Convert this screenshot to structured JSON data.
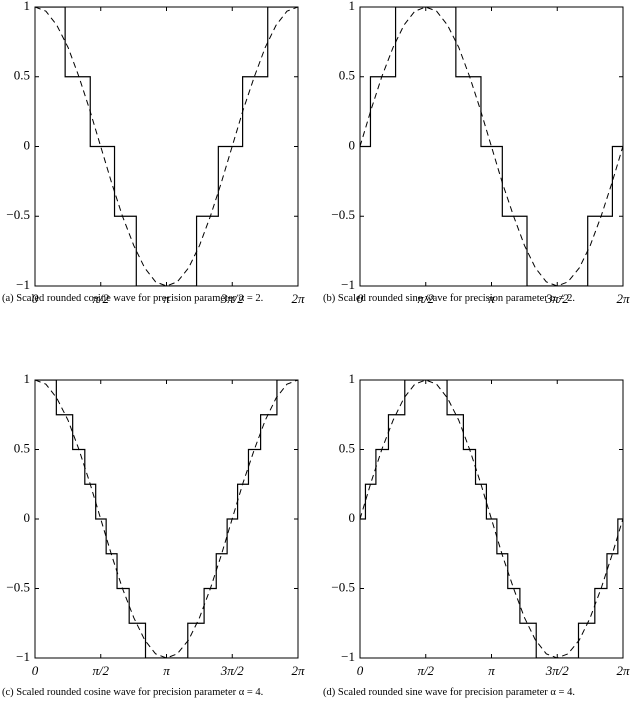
{
  "chart_data": [
    {
      "type": "line",
      "caption": "(a) Scaled rounded cosine wave for precision parameter α = 2.",
      "xlim": [
        0,
        6.2832
      ],
      "ylim": [
        -1,
        1
      ],
      "xticks": [
        0,
        {
          "value": 1.5708,
          "label": "π/2"
        },
        {
          "value": 3.1416,
          "label": "π"
        },
        {
          "value": 4.7124,
          "label": "3π/2"
        },
        {
          "value": 6.2832,
          "label": "2π"
        }
      ],
      "yticks": [
        {
          "value": -1,
          "label": "−1"
        },
        {
          "value": -0.5,
          "label": "−0.5"
        },
        0,
        0.5,
        1
      ],
      "series": [
        {
          "dash": true,
          "color": "#000000",
          "x": [
            0,
            0.26,
            0.52,
            0.79,
            1.05,
            1.31,
            1.57,
            1.83,
            2.09,
            2.36,
            2.62,
            2.88,
            3.14,
            3.4,
            3.67,
            3.93,
            4.19,
            4.45,
            4.71,
            4.97,
            5.24,
            5.5,
            5.76,
            6.02,
            6.28
          ],
          "values": [
            1,
            0.97,
            0.87,
            0.71,
            0.5,
            0.26,
            0,
            -0.26,
            -0.5,
            -0.71,
            -0.87,
            -0.97,
            -1,
            -0.97,
            -0.87,
            -0.71,
            -0.5,
            -0.26,
            0,
            0.26,
            0.5,
            0.71,
            0.87,
            0.97,
            1
          ]
        },
        {
          "dash": false,
          "color": "#000000",
          "x": [
            0,
            0.72,
            0.72,
            1.32,
            1.32,
            1.9,
            1.9,
            2.42,
            2.42,
            3.86,
            3.86,
            4.38,
            4.38,
            4.96,
            4.96,
            5.56,
            5.56,
            6.28
          ],
          "values": [
            1,
            1,
            0.5,
            0.5,
            0,
            0,
            -0.5,
            -0.5,
            -1,
            -1,
            -0.5,
            -0.5,
            0,
            0,
            0.5,
            0.5,
            1,
            1
          ]
        }
      ]
    },
    {
      "type": "line",
      "caption": "(b) Scaled rounded sine wave for precision parameter α = 2.",
      "xlim": [
        0,
        6.2832
      ],
      "ylim": [
        -1,
        1
      ],
      "xticks": [
        0,
        {
          "value": 1.5708,
          "label": "π/2"
        },
        {
          "value": 3.1416,
          "label": "π"
        },
        {
          "value": 4.7124,
          "label": "3π/2"
        },
        {
          "value": 6.2832,
          "label": "2π"
        }
      ],
      "yticks": [
        {
          "value": -1,
          "label": "−1"
        },
        {
          "value": -0.5,
          "label": "−0.5"
        },
        0,
        0.5,
        1
      ],
      "series": [
        {
          "dash": true,
          "color": "#000000",
          "x": [
            0,
            0.26,
            0.52,
            0.79,
            1.05,
            1.31,
            1.57,
            1.83,
            2.09,
            2.36,
            2.62,
            2.88,
            3.14,
            3.4,
            3.67,
            3.93,
            4.19,
            4.45,
            4.71,
            4.97,
            5.24,
            5.5,
            5.76,
            6.02,
            6.28
          ],
          "values": [
            0,
            0.26,
            0.5,
            0.71,
            0.87,
            0.97,
            1,
            0.97,
            0.87,
            0.71,
            0.5,
            0.26,
            0,
            -0.26,
            -0.5,
            -0.71,
            -0.87,
            -0.97,
            -1,
            -0.97,
            -0.87,
            -0.71,
            -0.5,
            -0.26,
            0
          ]
        },
        {
          "dash": false,
          "color": "#000000",
          "x": [
            0,
            0.25,
            0.25,
            0.85,
            0.85,
            2.29,
            2.29,
            2.89,
            2.89,
            3.4,
            3.4,
            3.99,
            3.99,
            5.44,
            5.44,
            6.03,
            6.03,
            6.28
          ],
          "values": [
            0,
            0,
            0.5,
            0.5,
            1,
            1,
            0.5,
            0.5,
            0,
            0,
            -0.5,
            -0.5,
            -1,
            -1,
            -0.5,
            -0.5,
            0,
            0
          ]
        }
      ]
    },
    {
      "type": "line",
      "caption": "(c) Scaled rounded cosine wave for precision parameter α = 4.",
      "xlim": [
        0,
        6.2832
      ],
      "ylim": [
        -1,
        1
      ],
      "xticks": [
        0,
        {
          "value": 1.5708,
          "label": "π/2"
        },
        {
          "value": 3.1416,
          "label": "π"
        },
        {
          "value": 4.7124,
          "label": "3π/2"
        },
        {
          "value": 6.2832,
          "label": "2π"
        }
      ],
      "yticks": [
        {
          "value": -1,
          "label": "−1"
        },
        {
          "value": -0.5,
          "label": "−0.5"
        },
        0,
        0.5,
        1
      ],
      "series": [
        {
          "dash": true,
          "color": "#000000",
          "x": [
            0,
            0.26,
            0.52,
            0.79,
            1.05,
            1.31,
            1.57,
            1.83,
            2.09,
            2.36,
            2.62,
            2.88,
            3.14,
            3.4,
            3.67,
            3.93,
            4.19,
            4.45,
            4.71,
            4.97,
            5.24,
            5.5,
            5.76,
            6.02,
            6.28
          ],
          "values": [
            1,
            0.97,
            0.87,
            0.71,
            0.5,
            0.26,
            0,
            -0.26,
            -0.5,
            -0.71,
            -0.87,
            -0.97,
            -1,
            -0.97,
            -0.87,
            -0.71,
            -0.5,
            -0.26,
            0,
            0.26,
            0.5,
            0.71,
            0.87,
            0.97,
            1
          ]
        },
        {
          "dash": false,
          "color": "#000000",
          "x": [
            0,
            0.51,
            0.51,
            0.9,
            0.9,
            1.19,
            1.19,
            1.45,
            1.45,
            1.7,
            1.7,
            1.96,
            1.96,
            2.25,
            2.25,
            2.64,
            2.64,
            3.65,
            3.65,
            4.04,
            4.04,
            4.33,
            4.33,
            4.59,
            4.59,
            4.84,
            4.84,
            5.1,
            5.1,
            5.39,
            5.39,
            5.78,
            5.78,
            6.28
          ],
          "values": [
            1,
            1,
            0.75,
            0.75,
            0.5,
            0.5,
            0.25,
            0.25,
            0,
            0,
            -0.25,
            -0.25,
            -0.5,
            -0.5,
            -0.75,
            -0.75,
            -1,
            -1,
            -0.75,
            -0.75,
            -0.5,
            -0.5,
            -0.25,
            -0.25,
            0,
            0,
            0.25,
            0.25,
            0.5,
            0.5,
            0.75,
            0.75,
            1,
            1
          ]
        }
      ]
    },
    {
      "type": "line",
      "caption": "(d) Scaled rounded sine wave for precision parameter α = 4.",
      "xlim": [
        0,
        6.2832
      ],
      "ylim": [
        -1,
        1
      ],
      "xticks": [
        0,
        {
          "value": 1.5708,
          "label": "π/2"
        },
        {
          "value": 3.1416,
          "label": "π"
        },
        {
          "value": 4.7124,
          "label": "3π/2"
        },
        {
          "value": 6.2832,
          "label": "2π"
        }
      ],
      "yticks": [
        {
          "value": -1,
          "label": "−1"
        },
        {
          "value": -0.5,
          "label": "−0.5"
        },
        0,
        0.5,
        1
      ],
      "series": [
        {
          "dash": true,
          "color": "#000000",
          "x": [
            0,
            0.26,
            0.52,
            0.79,
            1.05,
            1.31,
            1.57,
            1.83,
            2.09,
            2.36,
            2.62,
            2.88,
            3.14,
            3.4,
            3.67,
            3.93,
            4.19,
            4.45,
            4.71,
            4.97,
            5.24,
            5.5,
            5.76,
            6.02,
            6.28
          ],
          "values": [
            0,
            0.26,
            0.5,
            0.71,
            0.87,
            0.97,
            1,
            0.97,
            0.87,
            0.71,
            0.5,
            0.26,
            0,
            -0.26,
            -0.5,
            -0.71,
            -0.87,
            -0.97,
            -1,
            -0.97,
            -0.87,
            -0.71,
            -0.5,
            -0.26,
            0
          ]
        },
        {
          "dash": false,
          "color": "#000000",
          "x": [
            0,
            0.13,
            0.13,
            0.38,
            0.38,
            0.68,
            0.68,
            1.07,
            1.07,
            2.08,
            2.08,
            2.47,
            2.47,
            2.76,
            2.76,
            3.02,
            3.02,
            3.27,
            3.27,
            3.53,
            3.53,
            3.82,
            3.82,
            4.21,
            4.21,
            5.22,
            5.22,
            5.61,
            5.61,
            5.9,
            5.9,
            6.16,
            6.16,
            6.28
          ],
          "values": [
            0,
            0,
            0.25,
            0.25,
            0.5,
            0.5,
            0.75,
            0.75,
            1,
            1,
            0.75,
            0.75,
            0.5,
            0.5,
            0.25,
            0.25,
            0,
            0,
            -0.25,
            -0.25,
            -0.5,
            -0.5,
            -0.75,
            -0.75,
            -1,
            -1,
            -0.75,
            -0.75,
            -0.5,
            -0.5,
            -0.25,
            -0.25,
            0,
            0
          ]
        }
      ]
    }
  ]
}
